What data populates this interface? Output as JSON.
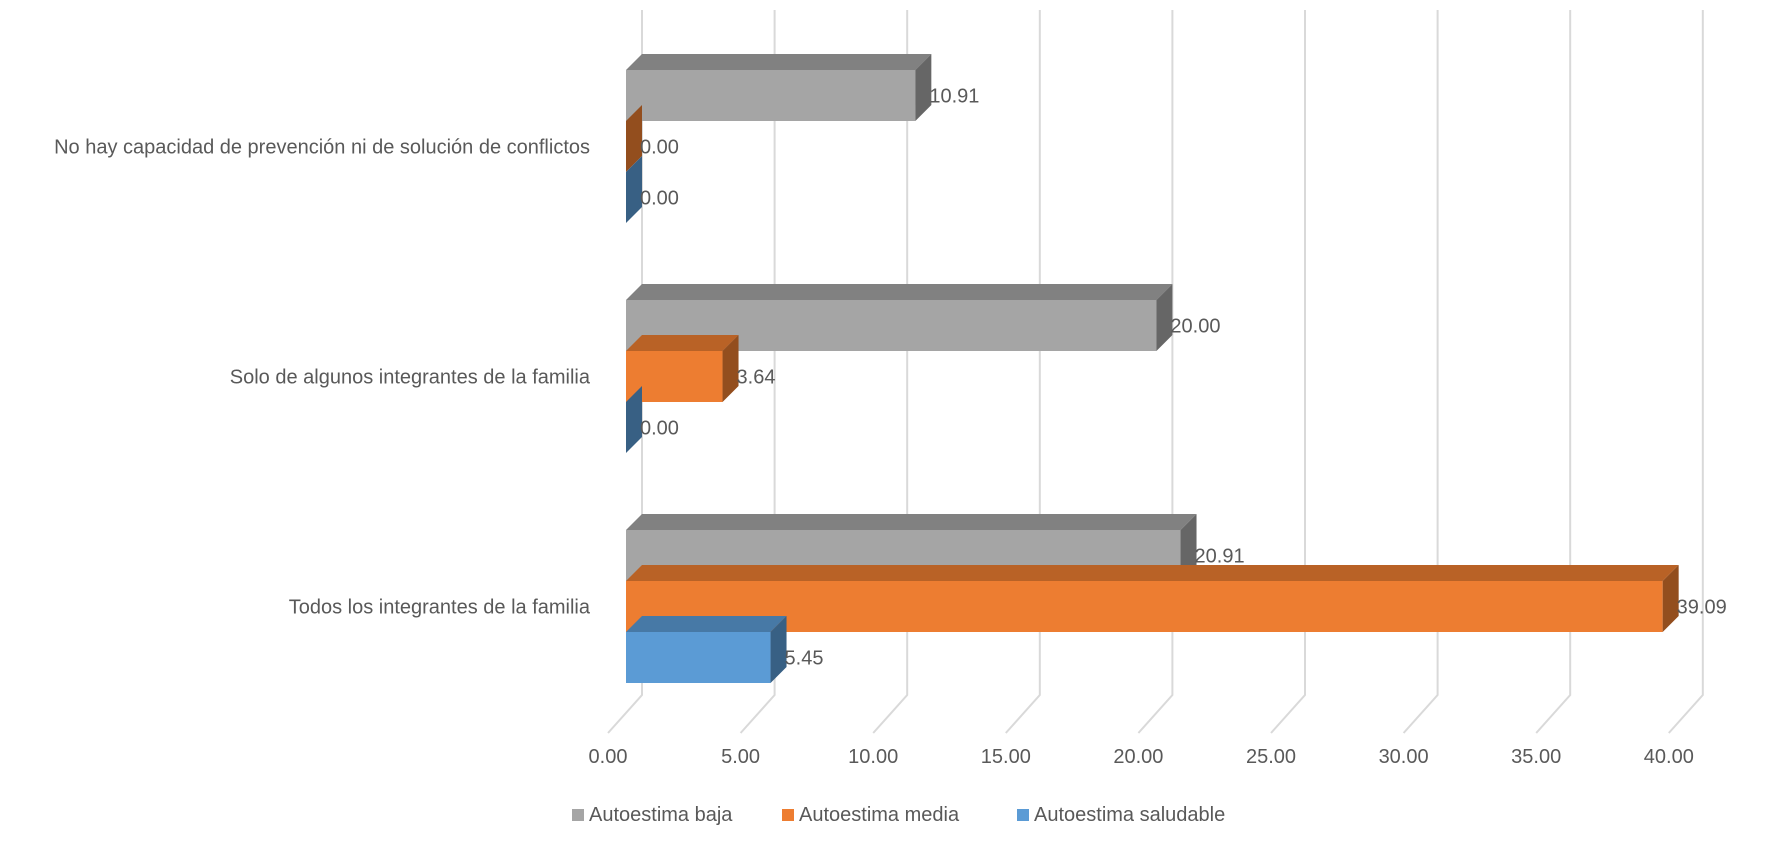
{
  "chart_data": {
    "type": "bar",
    "orientation": "horizontal",
    "style": "3d-clustered",
    "categories": [
      "No hay capacidad de prevención ni de solución de conflictos",
      "Solo de algunos integrantes de la familia",
      "Todos los integrantes de la familia"
    ],
    "series": [
      {
        "name": "Autoestima baja",
        "color": "#A5A5A5",
        "values": [
          10.91,
          20.0,
          20.91
        ],
        "labels": [
          "10.91",
          "20.00",
          "20.91"
        ]
      },
      {
        "name": "Autoestima media",
        "color": "#ED7D31",
        "values": [
          0.0,
          3.64,
          39.09
        ],
        "labels": [
          "0.00",
          "3.64",
          "39.09"
        ]
      },
      {
        "name": "Autoestima saludable",
        "color": "#5B9BD5",
        "values": [
          0.0,
          0.0,
          5.45
        ],
        "labels": [
          "0.00",
          "0.00",
          "5.45"
        ]
      }
    ],
    "xlim": [
      0,
      40
    ],
    "xticks": [
      "0.00",
      "5.00",
      "10.00",
      "15.00",
      "20.00",
      "25.00",
      "30.00",
      "35.00",
      "40.00"
    ],
    "grid": true,
    "legend": "bottom-center",
    "title": "",
    "xlabel": "",
    "ylabel": ""
  }
}
